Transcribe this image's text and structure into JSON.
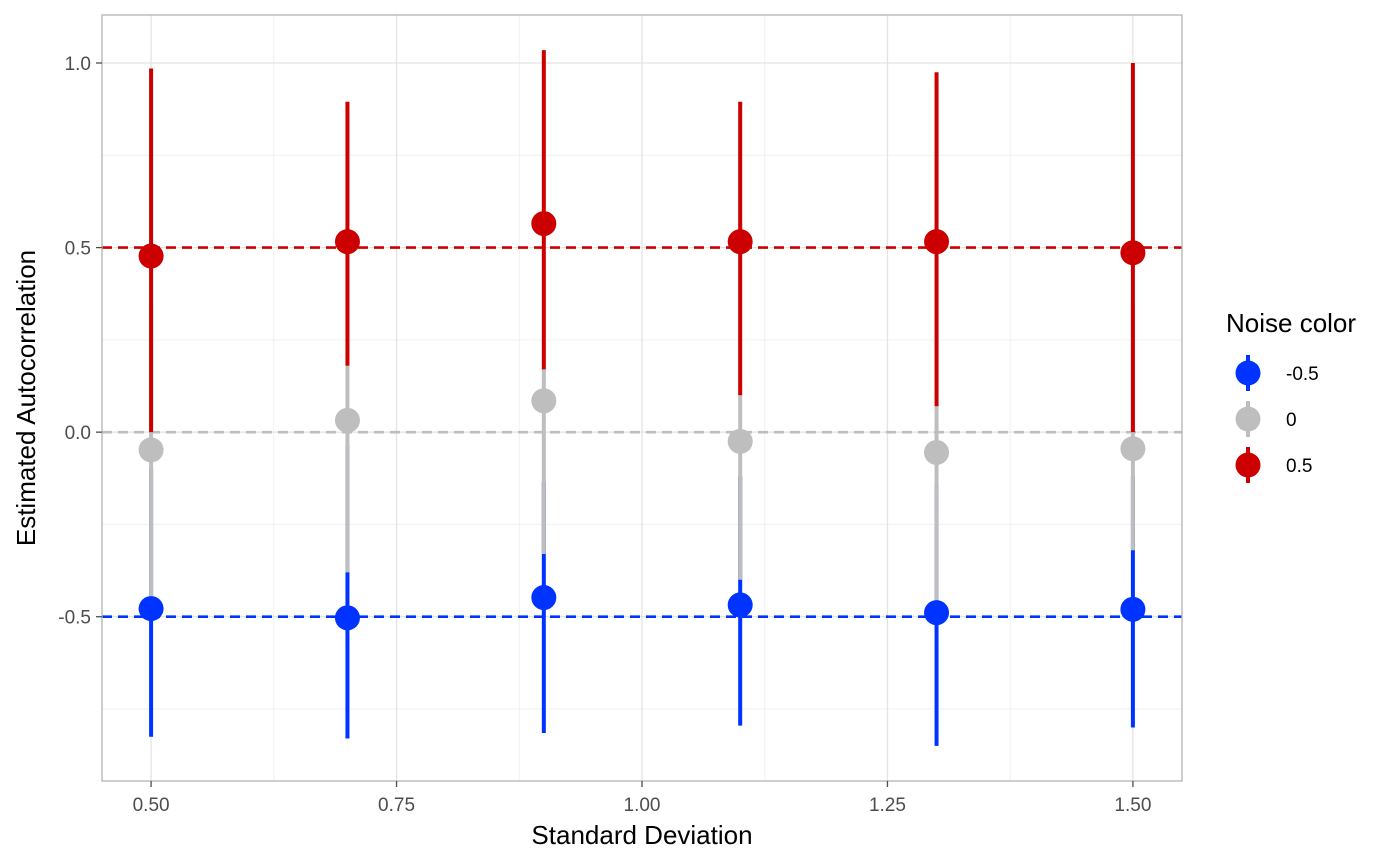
{
  "chart_data": {
    "type": "scatter",
    "title": "",
    "xlabel": "Standard Deviation",
    "ylabel": "Estimated Autocorrelation",
    "xlim": [
      0.45,
      1.55
    ],
    "ylim": [
      -0.945,
      1.13
    ],
    "x_ticks": [
      0.5,
      0.75,
      1.0,
      1.25,
      1.5
    ],
    "x_tick_labels": [
      "0.50",
      "0.75",
      "1.00",
      "1.25",
      "1.50"
    ],
    "y_ticks": [
      -0.5,
      0.0,
      0.5,
      1.0
    ],
    "y_tick_labels": [
      "-0.5",
      "0.0",
      "0.5",
      "1.0"
    ],
    "grid": true,
    "legend": {
      "title": "Noise color",
      "position": "right"
    },
    "x": [
      0.5,
      0.7,
      0.9,
      1.1,
      1.3,
      1.5
    ],
    "series": [
      {
        "name": "-0.5",
        "color": "#0033ff",
        "reference": -0.5,
        "y": [
          -0.478,
          -0.503,
          -0.448,
          -0.468,
          -0.489,
          -0.48
        ],
        "lower": [
          -0.825,
          -0.83,
          -0.815,
          -0.795,
          -0.85,
          -0.8
        ],
        "upper": [
          -0.1,
          -0.035,
          -0.135,
          -0.12,
          -0.14,
          -0.12
        ]
      },
      {
        "name": "0",
        "color": "#bebebe",
        "reference": 0.0,
        "y": [
          -0.048,
          0.032,
          0.085,
          -0.025,
          -0.055,
          -0.045
        ],
        "lower": [
          -0.465,
          -0.38,
          -0.33,
          -0.4,
          -0.47,
          -0.32
        ],
        "upper": [
          0.35,
          0.18,
          0.17,
          0.1,
          0.07,
          0.35
        ]
      },
      {
        "name": "0.5",
        "color": "#cc0000",
        "reference": 0.5,
        "y": [
          0.477,
          0.516,
          0.565,
          0.516,
          0.516,
          0.486
        ],
        "lower": [
          0.0,
          0.18,
          0.17,
          0.1,
          0.07,
          0.0
        ],
        "upper": [
          0.985,
          0.895,
          1.035,
          0.895,
          0.975,
          1.0
        ]
      }
    ]
  }
}
